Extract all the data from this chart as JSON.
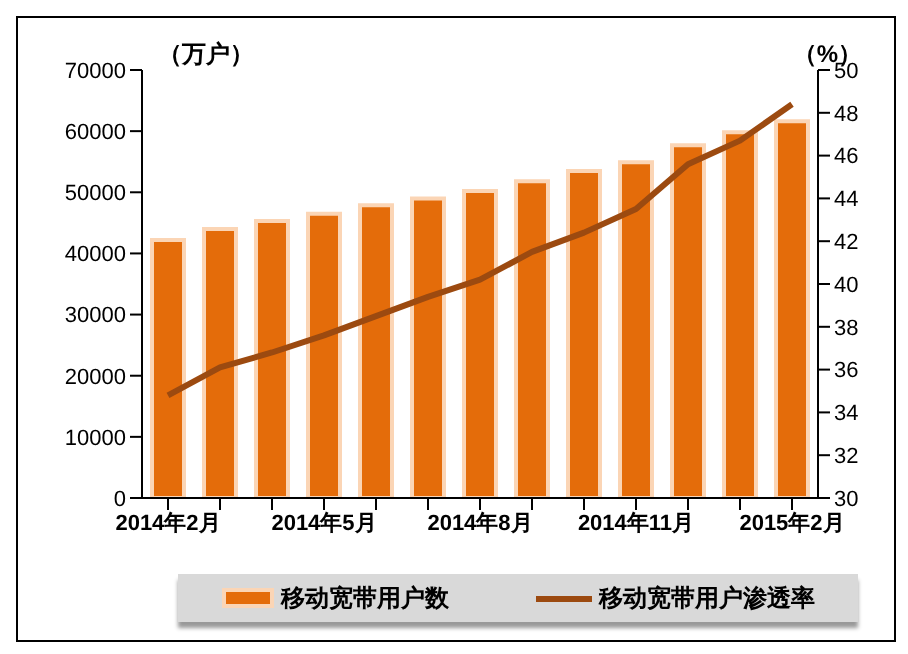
{
  "chart_data": {
    "type": "bar",
    "ylabel": "（万户）",
    "y2label": "（%）",
    "categories": [
      "2014年2月",
      null,
      null,
      "2014年5月",
      null,
      null,
      "2014年8月",
      null,
      null,
      "2014年11月",
      null,
      null,
      "2015年2月"
    ],
    "series": [
      {
        "name": "移动宽带用户数",
        "color": "#e46c0a",
        "values": [
          42200,
          44000,
          45300,
          46500,
          47900,
          49000,
          50200,
          51800,
          53500,
          54900,
          57700,
          59800,
          61600
        ]
      },
      {
        "name": "移动宽带用户渗透率",
        "type": "line",
        "axis": "y2",
        "color": "#9c4a10",
        "values": [
          34.8,
          36.1,
          36.8,
          37.6,
          38.5,
          39.4,
          40.2,
          41.5,
          42.4,
          43.5,
          45.6,
          46.7,
          48.4
        ]
      }
    ],
    "ylim": [
      0,
      70000
    ],
    "yticks": [
      0,
      10000,
      20000,
      30000,
      40000,
      50000,
      60000,
      70000
    ],
    "y2lim": [
      30,
      50
    ],
    "y2ticks": [
      30,
      32,
      34,
      36,
      38,
      40,
      42,
      44,
      46,
      48,
      50
    ],
    "legend": "bottom",
    "marker": "none"
  }
}
